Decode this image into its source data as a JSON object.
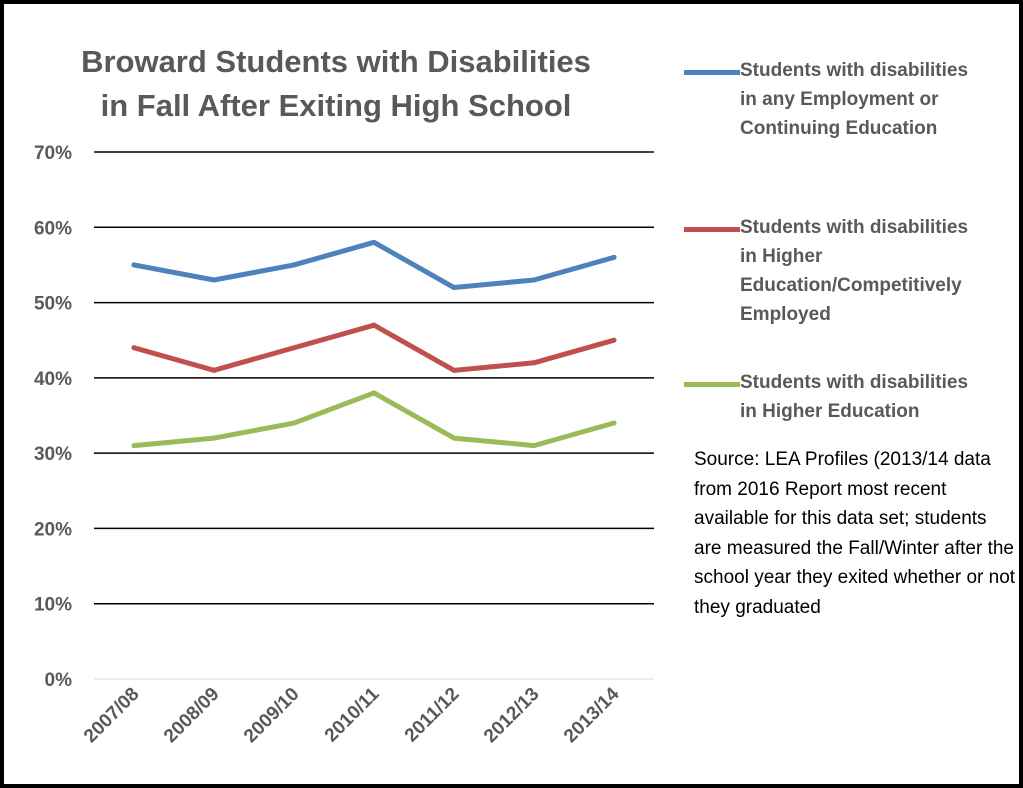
{
  "chart_data": {
    "type": "line",
    "title": "Broward Students with Disabilities in Fall After Exiting High School",
    "title_lines": [
      "Broward Students with Disabilities",
      "in Fall After Exiting High School"
    ],
    "categories": [
      "2007/08",
      "2008/09",
      "2009/10",
      "2010/11",
      "2011/12",
      "2012/13",
      "2013/14"
    ],
    "y_ticks": [
      "0%",
      "10%",
      "20%",
      "30%",
      "40%",
      "50%",
      "60%",
      "70%"
    ],
    "ylim": [
      0,
      70
    ],
    "grid": true,
    "legend_position": "right",
    "series": [
      {
        "name": "Students with disabilities in any Employment or Continuing Education",
        "label_lines": [
          "Students with disabilities",
          "in any Employment or",
          "Continuing Education"
        ],
        "color": "#4F81BD",
        "values": [
          55,
          53,
          55,
          58,
          52,
          53,
          56
        ]
      },
      {
        "name": "Students with disabilities in Higher Education/Competitively Employed",
        "label_lines": [
          "Students with disabilities",
          "in Higher",
          "Education/Competitively",
          "Employed"
        ],
        "color": "#C0504D",
        "values": [
          44,
          41,
          44,
          47,
          41,
          42,
          45
        ]
      },
      {
        "name": "Students with disabilities in Higher Education",
        "label_lines": [
          "Students with disabilities",
          "in Higher Education"
        ],
        "color": "#9BBB59",
        "values": [
          31,
          32,
          34,
          38,
          32,
          31,
          34
        ]
      }
    ]
  },
  "source_note": "Source: LEA Profiles (2013/14 data from 2016 Report most recent available for this data set; students are measured the Fall/Winter after the school year they exited whether or not they graduated"
}
